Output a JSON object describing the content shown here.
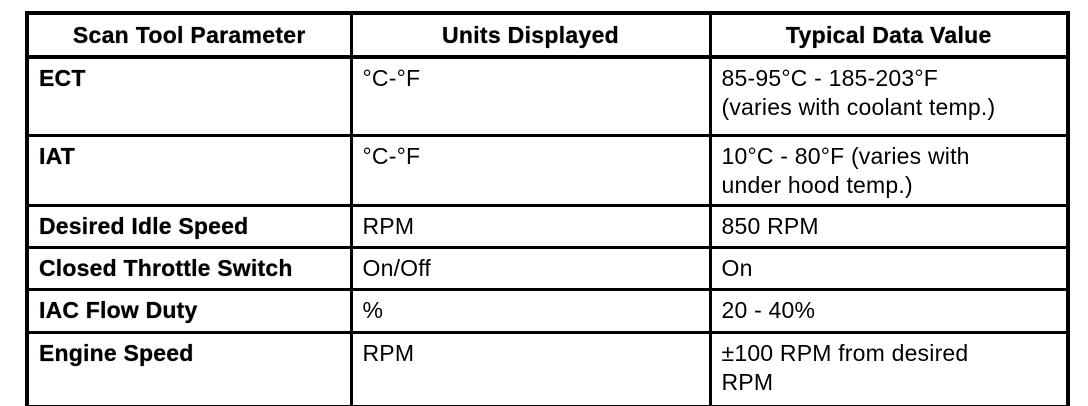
{
  "table": {
    "columns": [
      "Scan Tool Parameter",
      "Units Displayed",
      "Typical Data Value"
    ],
    "rows": [
      {
        "parameter": "ECT",
        "units": "°C-°F",
        "value": "85-95°C - 185-203°F\n(varies with coolant temp.)"
      },
      {
        "parameter": "IAT",
        "units": "°C-°F",
        "value": "10°C - 80°F (varies with\nunder hood temp.)"
      },
      {
        "parameter": "Desired Idle Speed",
        "units": "RPM",
        "value": "850 RPM"
      },
      {
        "parameter": "Closed Throttle Switch",
        "units": "On/Off",
        "value": "On"
      },
      {
        "parameter": "IAC Flow Duty",
        "units": "%",
        "value": "20 - 40%"
      },
      {
        "parameter": "Engine Speed",
        "units": "RPM",
        "value": "±100 RPM from desired\nRPM"
      }
    ]
  }
}
